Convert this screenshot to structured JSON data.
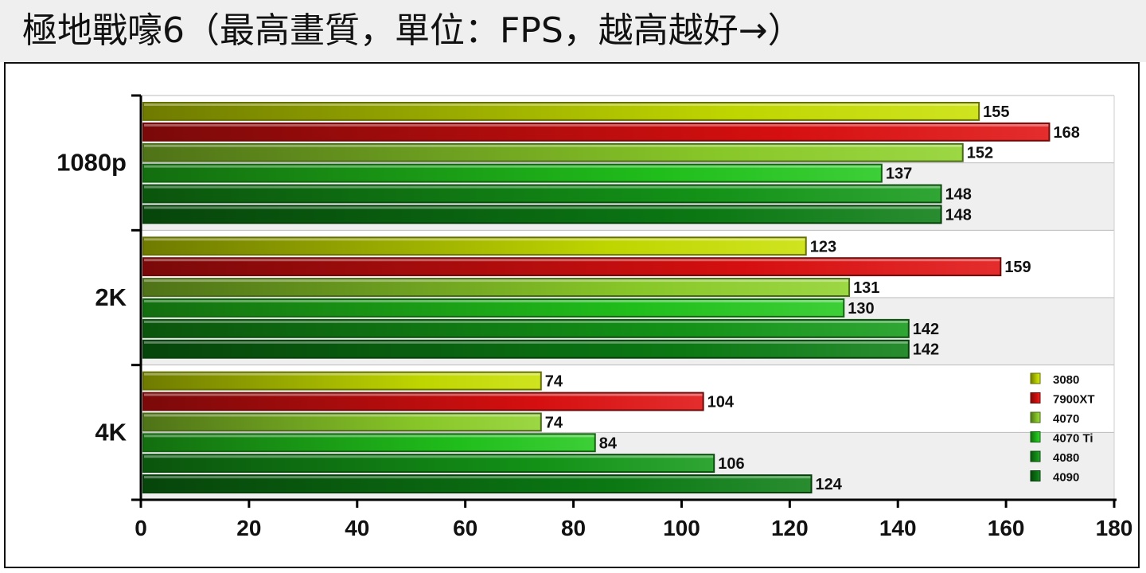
{
  "title": "極地戰嚎6（最高畫質，單位：FPS，越高越好→）",
  "chart_data": {
    "type": "bar",
    "orientation": "horizontal",
    "title": "極地戰嚎6（最高畫質，單位：FPS，越高越好→）",
    "categories": [
      "1080p",
      "2K",
      "4K"
    ],
    "series": [
      {
        "name": "3080",
        "values": [
          155,
          123,
          74
        ],
        "color": "#c9e000"
      },
      {
        "name": "7900XT",
        "values": [
          168,
          159,
          104
        ],
        "color": "#e01010"
      },
      {
        "name": "4070",
        "values": [
          152,
          131,
          74
        ],
        "color": "#8fd12a"
      },
      {
        "name": "4070 Ti",
        "values": [
          137,
          130,
          84
        ],
        "color": "#22c81c"
      },
      {
        "name": "4080",
        "values": [
          148,
          142,
          106
        ],
        "color": "#149a18"
      },
      {
        "name": "4090",
        "values": [
          148,
          142,
          124
        ],
        "color": "#0c7e14"
      }
    ],
    "xlim": [
      0,
      180
    ],
    "xticks": [
      "0",
      "20",
      "40",
      "60",
      "80",
      "100",
      "120",
      "140",
      "160",
      "180"
    ],
    "grid": "alternating shaded bands",
    "legend": "bottom-right"
  }
}
